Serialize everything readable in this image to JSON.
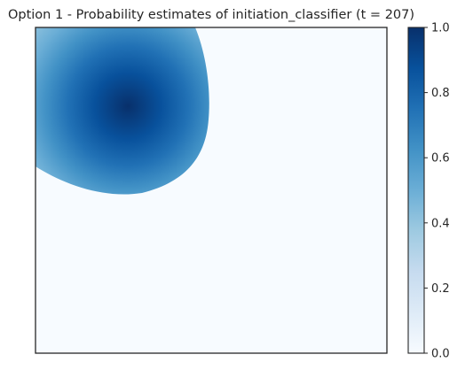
{
  "chart_data": {
    "type": "heatmap",
    "title": "Option 1 - Probability estimates of initiation_classifier (t = 207)",
    "xlabel": "",
    "ylabel": "",
    "colormap": "Blues",
    "colorbar": {
      "range": [
        0.0,
        1.0
      ],
      "ticks": [
        0.0,
        0.2,
        0.4,
        0.6,
        0.8,
        1.0
      ],
      "tick_labels": [
        "0.0",
        "0.2",
        "0.4",
        "0.6",
        "0.8",
        "1.0"
      ]
    },
    "axes_ticks_shown": false,
    "region": {
      "description_units": "fraction of plot area (x right, y down)",
      "peak_center": [
        0.26,
        0.24
      ],
      "peak_value": 1.0,
      "background_value": 0.0
    }
  },
  "colors": {
    "low": "#f7fbff",
    "mid_low": "#c6dbef",
    "mid": "#6baed6",
    "mid_high": "#2171b5",
    "high": "#08306b",
    "frame": "#262626"
  }
}
